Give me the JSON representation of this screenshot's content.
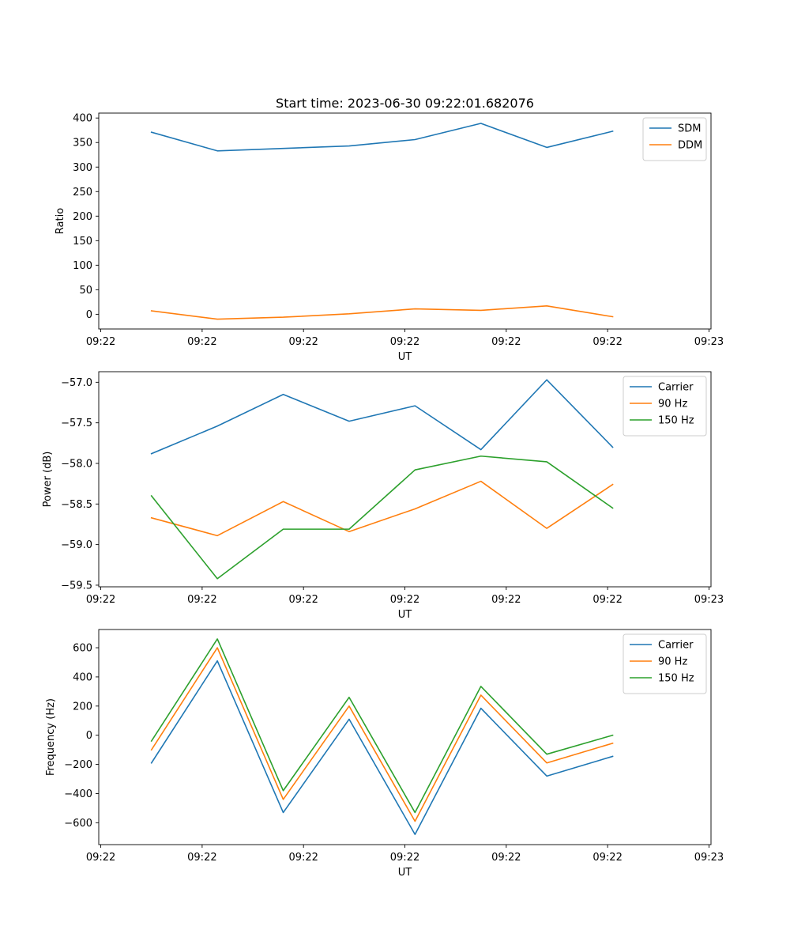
{
  "figure": {
    "title": "Start time: 2023-06-30 09:22:01.682076"
  },
  "chart_data": [
    {
      "type": "line",
      "title": "Start time: 2023-06-30 09:22:01.682076",
      "xlabel": "UT",
      "ylabel": "Ratio",
      "x_tick_labels": [
        "09:22",
        "09:22",
        "09:22",
        "09:22",
        "09:22",
        "09:22",
        "09:23"
      ],
      "x_ticks": [
        0,
        1,
        2,
        3,
        4,
        5,
        6
      ],
      "xlim": [
        -0.02,
        6.02
      ],
      "x": [
        0.5,
        1.15,
        1.8,
        2.45,
        3.1,
        3.75,
        4.4,
        5.05
      ],
      "ylim": [
        -30,
        410
      ],
      "y_ticks": [
        0,
        50,
        100,
        150,
        200,
        250,
        300,
        350,
        400
      ],
      "y_tick_labels": [
        "0",
        "50",
        "100",
        "150",
        "200",
        "250",
        "300",
        "350",
        "400"
      ],
      "legend_position": "top-right",
      "grid": false,
      "series": [
        {
          "name": "SDM",
          "color": "#1f77b4",
          "values": [
            371,
            333,
            338,
            343,
            356,
            389,
            340,
            373
          ]
        },
        {
          "name": "DDM",
          "color": "#ff7f0e",
          "values": [
            7,
            -10,
            -6,
            1,
            11,
            8,
            17,
            -5
          ]
        }
      ]
    },
    {
      "type": "line",
      "xlabel": "UT",
      "ylabel": "Power (dB)",
      "x_tick_labels": [
        "09:22",
        "09:22",
        "09:22",
        "09:22",
        "09:22",
        "09:22",
        "09:23"
      ],
      "x_ticks": [
        0,
        1,
        2,
        3,
        4,
        5,
        6
      ],
      "xlim": [
        -0.02,
        6.02
      ],
      "x": [
        0.5,
        1.15,
        1.8,
        2.45,
        3.1,
        3.75,
        4.4,
        5.05
      ],
      "ylim": [
        -59.52,
        -56.87
      ],
      "y_ticks": [
        -59.5,
        -59.0,
        -58.5,
        -58.0,
        -57.5,
        -57.0
      ],
      "y_tick_labels": [
        "−59.5",
        "−59.0",
        "−58.5",
        "−58.0",
        "−57.5",
        "−57.0"
      ],
      "legend_position": "top-right",
      "grid": false,
      "series": [
        {
          "name": "Carrier",
          "color": "#1f77b4",
          "values": [
            -57.88,
            -57.54,
            -57.15,
            -57.48,
            -57.29,
            -57.83,
            -56.97,
            -57.8
          ]
        },
        {
          "name": "90 Hz",
          "color": "#ff7f0e",
          "values": [
            -58.67,
            -58.89,
            -58.47,
            -58.84,
            -58.56,
            -58.22,
            -58.8,
            -58.26
          ]
        },
        {
          "name": "150 Hz",
          "color": "#2ca02c",
          "values": [
            -58.4,
            -59.42,
            -58.81,
            -58.81,
            -58.08,
            -57.91,
            -57.98,
            -58.55
          ]
        }
      ]
    },
    {
      "type": "line",
      "xlabel": "UT",
      "ylabel": "Frequency (Hz)",
      "x_tick_labels": [
        "09:22",
        "09:22",
        "09:22",
        "09:22",
        "09:22",
        "09:22",
        "09:23"
      ],
      "x_ticks": [
        0,
        1,
        2,
        3,
        4,
        5,
        6
      ],
      "xlim": [
        -0.02,
        6.02
      ],
      "x": [
        0.5,
        1.15,
        1.8,
        2.45,
        3.1,
        3.75,
        4.4,
        5.05
      ],
      "ylim": [
        -750,
        725
      ],
      "y_ticks": [
        -600,
        -400,
        -200,
        0,
        200,
        400,
        600
      ],
      "y_tick_labels": [
        "−600",
        "−400",
        "−200",
        "0",
        "200",
        "400",
        "600"
      ],
      "legend_position": "top-right",
      "grid": false,
      "series": [
        {
          "name": "Carrier",
          "color": "#1f77b4",
          "values": [
            -190,
            510,
            -530,
            110,
            -680,
            185,
            -280,
            -145
          ]
        },
        {
          "name": "90 Hz",
          "color": "#ff7f0e",
          "values": [
            -100,
            600,
            -440,
            200,
            -590,
            275,
            -190,
            -55
          ]
        },
        {
          "name": "150 Hz",
          "color": "#2ca02c",
          "values": [
            -40,
            660,
            -380,
            260,
            -530,
            335,
            -130,
            0
          ]
        }
      ]
    }
  ]
}
